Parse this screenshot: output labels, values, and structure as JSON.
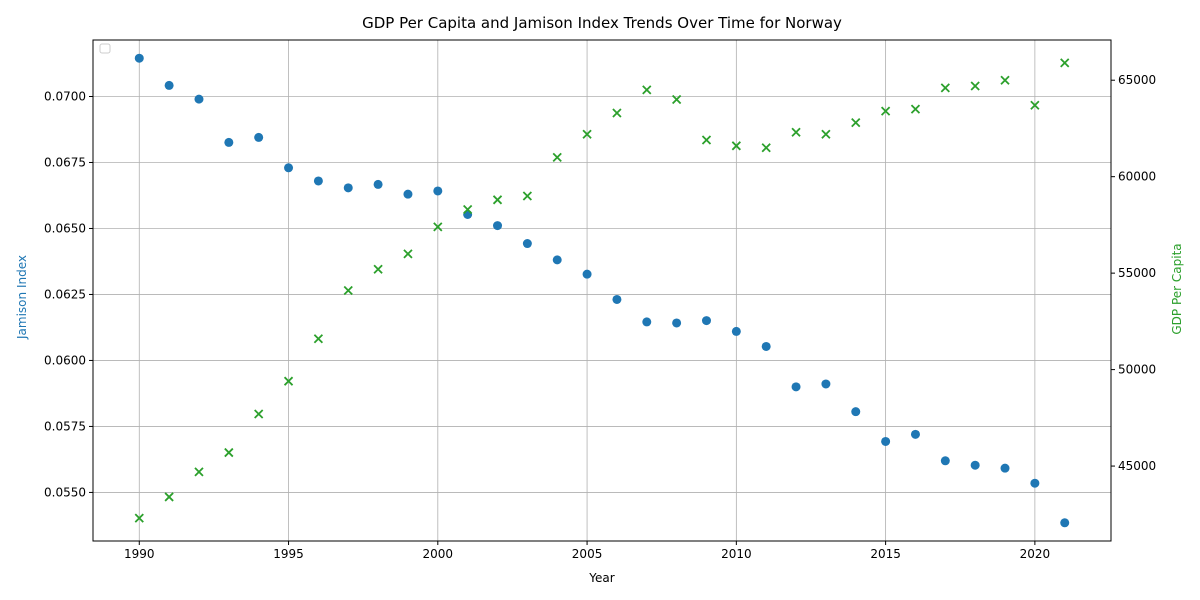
{
  "chart_data": {
    "type": "scatter",
    "title": "GDP Per Capita and Jamison Index Trends Over Time for Norway",
    "xlabel": "Year",
    "ylabel_left": "Jamison Index",
    "ylabel_right": "GDP Per Capita",
    "colors": {
      "left": "#1f77b4",
      "right": "#2ca02c"
    },
    "grid": true,
    "legend": "top-left (empty)",
    "x": [
      1990,
      1991,
      1992,
      1993,
      1994,
      1995,
      1996,
      1997,
      1998,
      1999,
      2000,
      2001,
      2002,
      2003,
      2004,
      2005,
      2006,
      2007,
      2008,
      2009,
      2010,
      2011,
      2012,
      2013,
      2014,
      2015,
      2016,
      2017,
      2018,
      2019,
      2020,
      2021
    ],
    "xlim": [
      1988.45,
      2022.55
    ],
    "xticks": [
      1990,
      1995,
      2000,
      2005,
      2010,
      2015,
      2020
    ],
    "series": [
      {
        "axis": "left",
        "marker": "circle",
        "values": [
          0.07145,
          0.07042,
          0.0699,
          0.06826,
          0.06845,
          0.0673,
          0.0668,
          0.06654,
          0.06667,
          0.0663,
          0.06642,
          0.06553,
          0.06511,
          0.06443,
          0.06381,
          0.06327,
          0.06231,
          0.06146,
          0.06142,
          0.06151,
          0.0611,
          0.06053,
          0.059,
          0.05911,
          0.05806,
          0.05693,
          0.0572,
          0.0562,
          0.05603,
          0.05592,
          0.05535,
          0.05385
        ]
      },
      {
        "axis": "right",
        "marker": "x",
        "values": [
          42300,
          43400,
          44700,
          45700,
          47700,
          49400,
          51600,
          54100,
          55200,
          56000,
          57400,
          58300,
          58800,
          59000,
          61000,
          62200,
          63300,
          64500,
          64000,
          61900,
          61600,
          61500,
          62300,
          62200,
          62800,
          63400,
          63500,
          64600,
          64700,
          65000,
          63700,
          65900
        ]
      }
    ],
    "ylim_left": [
      0.05316,
      0.07214
    ],
    "ylim_right": [
      41116,
      67084
    ],
    "yticks_left": [
      "0.0550",
      "0.0575",
      "0.0600",
      "0.0625",
      "0.0650",
      "0.0675",
      "0.0700"
    ],
    "yticks_right": [
      "45000",
      "50000",
      "55000",
      "60000",
      "65000"
    ]
  }
}
